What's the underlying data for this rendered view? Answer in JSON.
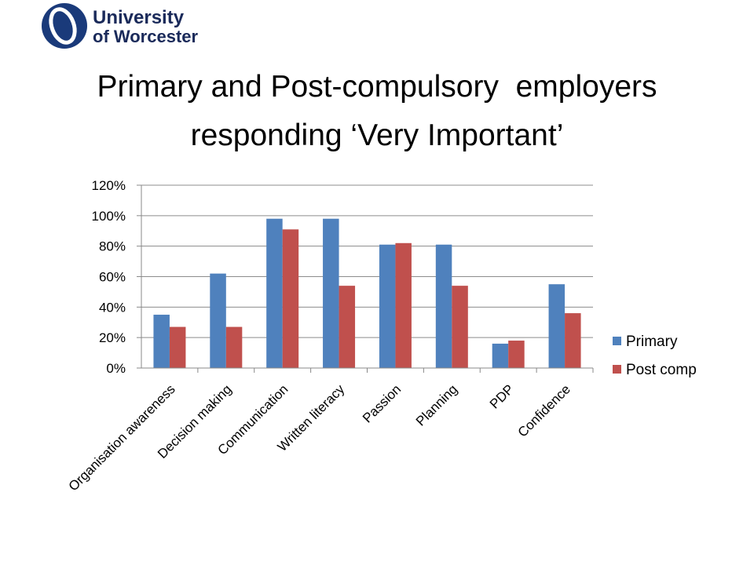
{
  "logo": {
    "line1": "University",
    "line2": "of Worcester"
  },
  "chart_data": {
    "type": "bar",
    "title": "Primary and Post-compulsory  employers responding ‘Very Important’",
    "categories": [
      "Organisation awareness",
      "Decision making",
      "Communication",
      "Written literacy",
      "Passion",
      "Planning",
      "PDP",
      "Confidence"
    ],
    "series": [
      {
        "name": "Primary",
        "color": "#4f81bd",
        "values": [
          35,
          62,
          98,
          98,
          81,
          81,
          16,
          55
        ]
      },
      {
        "name": "Post comp",
        "color": "#c0504d",
        "values": [
          27,
          27,
          91,
          54,
          82,
          54,
          18,
          36
        ]
      }
    ],
    "ylim": [
      0,
      120
    ],
    "yticks": [
      {
        "value": 0,
        "label": "0%"
      },
      {
        "value": 20,
        "label": "20%"
      },
      {
        "value": 40,
        "label": "40%"
      },
      {
        "value": 60,
        "label": "60%"
      },
      {
        "value": 80,
        "label": "80%"
      },
      {
        "value": 100,
        "label": "100%"
      },
      {
        "value": 120,
        "label": "120%"
      }
    ],
    "grid": true,
    "legend": "right"
  }
}
